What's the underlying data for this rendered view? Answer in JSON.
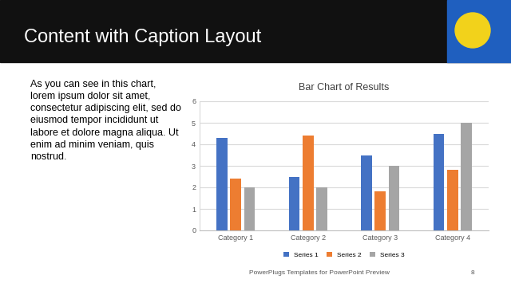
{
  "slide": {
    "title": "Content with Caption Layout",
    "caption": "As you can see in this chart,\nlorem ipsum dolor sit amet,\nconsectetur adipiscing elit, sed do\neiusmod tempor incididunt ut\nlabore et dolore magna aliqua. Ut\nenim ad minim veniam, quis\nnostrud.",
    "footer": "PowerPlugs Templates for PowerPoint Preview",
    "page": 8
  },
  "chart_data": {
    "type": "bar",
    "title": "Bar Chart of Results",
    "categories": [
      "Category 1",
      "Category 2",
      "Category 3",
      "Category 4"
    ],
    "series": [
      {
        "name": "Series 1",
        "color": "#4472c4",
        "values": [
          4.3,
          2.5,
          3.5,
          4.5
        ]
      },
      {
        "name": "Series 2",
        "color": "#ed7d31",
        "values": [
          2.4,
          4.4,
          1.8,
          2.8
        ]
      },
      {
        "name": "Series 3",
        "color": "#a5a5a5",
        "values": [
          2,
          2,
          3,
          5
        ]
      }
    ],
    "ylim": [
      0,
      6
    ],
    "yticks": [
      0,
      1,
      2,
      3,
      4,
      5,
      6
    ],
    "grid": true,
    "legend": "bottom"
  }
}
